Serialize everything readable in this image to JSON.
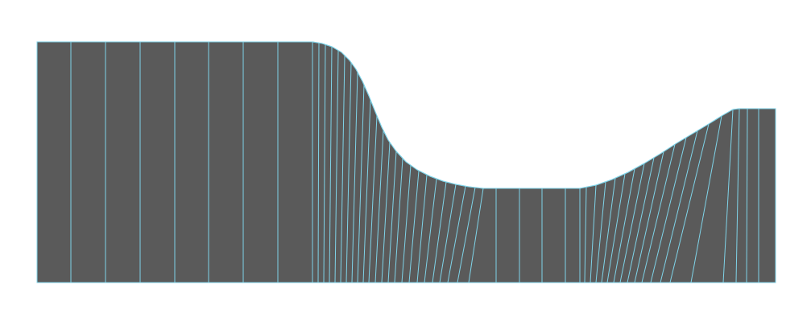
{
  "colors": {
    "background": "#ffffff",
    "fill": "#5a5a5a",
    "line": "#7fd3e8"
  },
  "diagram": {
    "kind": "structured-mesh",
    "shape": "channel with smooth bottom-profile bump",
    "vertical_line_count": 55
  }
}
